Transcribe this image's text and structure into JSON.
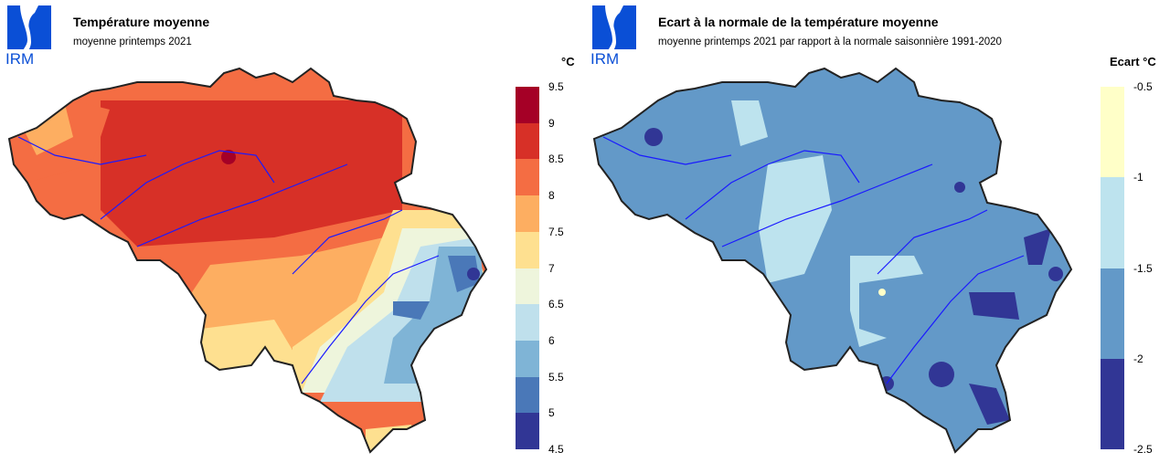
{
  "logo": {
    "text": "IRM",
    "color": "#0a4fd6"
  },
  "left": {
    "title": "Température moyenne",
    "subtitle": "moyenne printemps 2021",
    "unit": "°C",
    "legend": {
      "ticks": [
        "9.5",
        "9",
        "8.5",
        "8",
        "7.5",
        "7",
        "6.5",
        "6",
        "5.5",
        "5",
        "4.5"
      ],
      "colors": [
        "#a50026",
        "#d73027",
        "#f46d43",
        "#fdae61",
        "#fee090",
        "#eef5dc",
        "#bfe0ec",
        "#7fb4d6",
        "#4a78b8",
        "#313695"
      ]
    }
  },
  "right": {
    "title": "Ecart à la normale de la température moyenne",
    "subtitle": "moyenne printemps 2021 par rapport à la normale saisonnière 1991-2020",
    "unit": "Ecart  °C",
    "legend": {
      "ticks": [
        "-0.5",
        "-1",
        "-1.5",
        "-2",
        "-2.5"
      ],
      "colors": [
        "#ffffc8",
        "#bde3ee",
        "#6399c8",
        "#313695"
      ]
    }
  }
}
